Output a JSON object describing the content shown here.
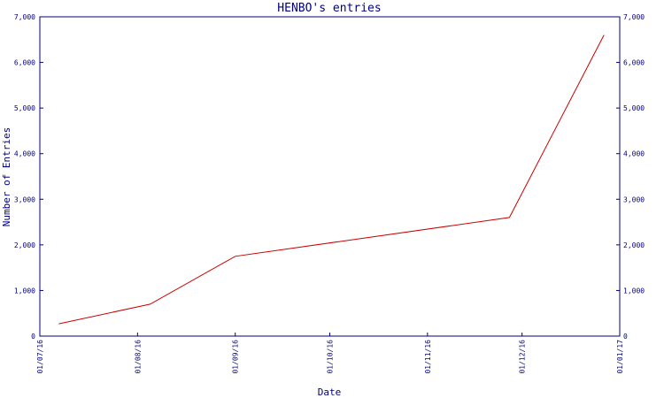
{
  "chart_data": {
    "type": "line",
    "title": "HENBO's entries",
    "xlabel": "Date",
    "ylabel": "Number of Entries",
    "ylim": [
      0,
      7000
    ],
    "yticks": [
      0,
      1000,
      2000,
      3000,
      4000,
      5000,
      6000,
      7000
    ],
    "ytick_labels": [
      "0",
      "1,000",
      "2,000",
      "3,000",
      "4,000",
      "5,000",
      "6,000",
      "7,000"
    ],
    "xlim": [
      "2016-07-01",
      "2017-01-01"
    ],
    "xticks": [
      "2016-07-01",
      "2016-08-01",
      "2016-09-01",
      "2016-10-01",
      "2016-11-01",
      "2016-12-01",
      "2017-01-01"
    ],
    "xtick_labels": [
      "01/07/16",
      "01/08/16",
      "01/09/16",
      "01/10/16",
      "01/11/16",
      "01/12/16",
      "01/01/17"
    ],
    "grid": false,
    "right_axis": true,
    "series": [
      {
        "color": "#cc0000",
        "x": [
          "2016-07-07",
          "2016-08-05",
          "2016-09-01",
          "2016-11-27",
          "2016-12-27"
        ],
        "y": [
          270,
          700,
          1750,
          2600,
          6600
        ]
      }
    ],
    "colors": {
      "axis": "#000080",
      "line": "#cc0000"
    }
  }
}
